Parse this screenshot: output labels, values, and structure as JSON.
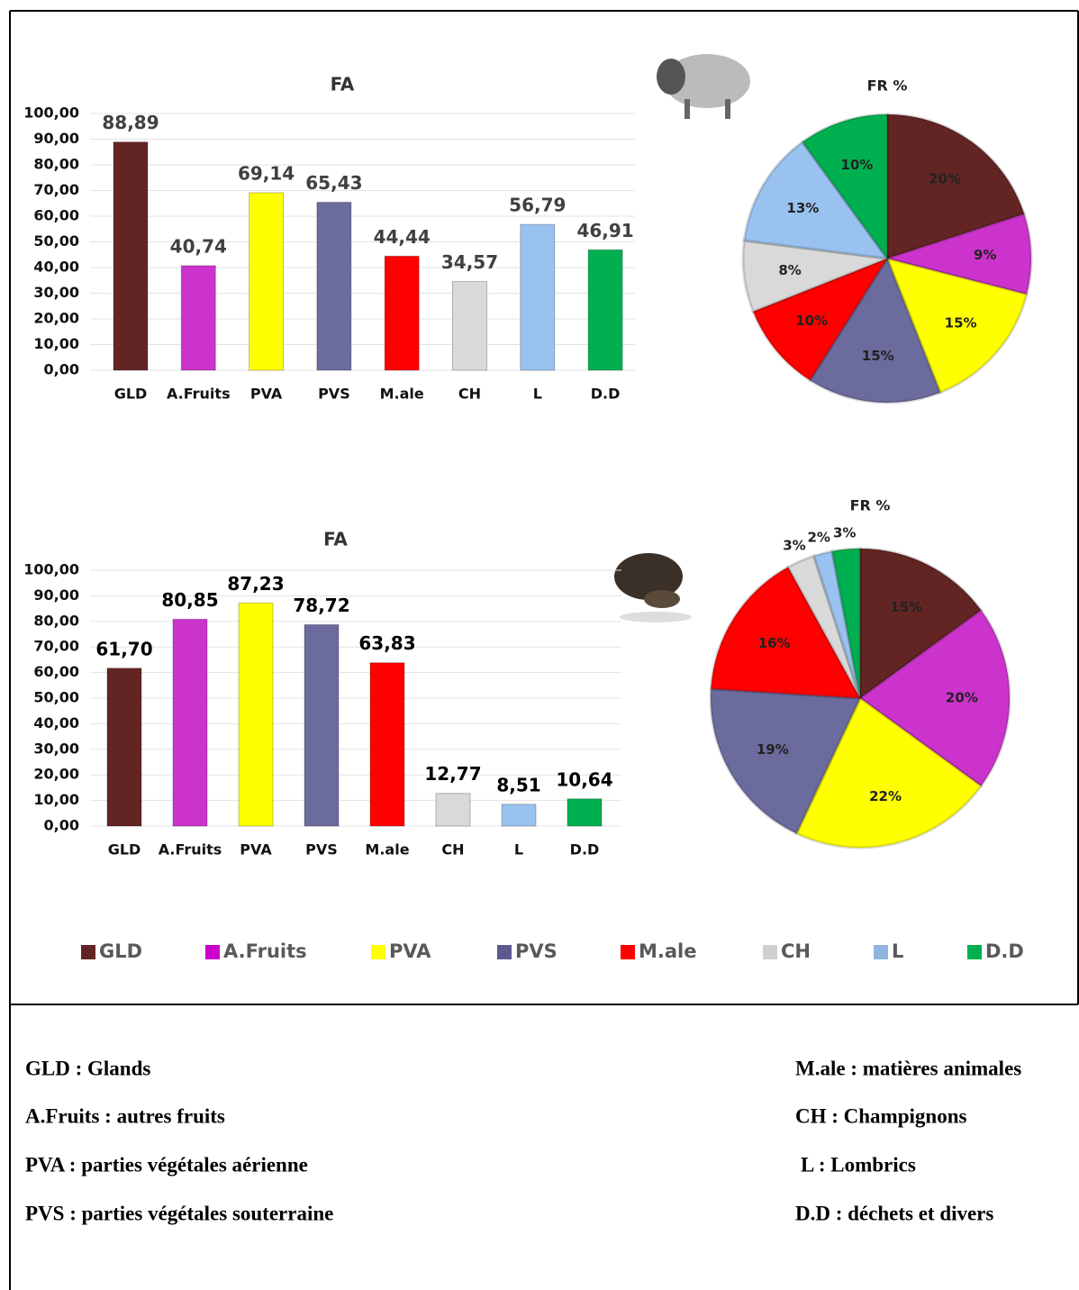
{
  "chart_data": [
    {
      "type": "bar",
      "title": "FA",
      "categories": [
        "GLD",
        "A.Fruits",
        "PVA",
        "PVS",
        "M.ale",
        "CH",
        "L",
        "D.D"
      ],
      "values": [
        88.89,
        40.74,
        69.14,
        65.43,
        44.44,
        34.57,
        56.79,
        46.91
      ],
      "value_labels": [
        "88,89",
        "40,74",
        "69,14",
        "65,43",
        "44,44",
        "34,57",
        "56,79",
        "46,91"
      ],
      "colors": [
        "#632523",
        "#cc33cc",
        "#ffff00",
        "#6b6b9e",
        "#ff0000",
        "#d9d9d9",
        "#99c2f0",
        "#00b050"
      ],
      "ylim": [
        0,
        100
      ],
      "yticks": [
        {
          "value": 0,
          "label": "0,00"
        },
        {
          "value": 10,
          "label": "10,00"
        },
        {
          "value": 20,
          "label": "20,00"
        },
        {
          "value": 30,
          "label": "30,00"
        },
        {
          "value": 40,
          "label": "40,00"
        },
        {
          "value": 50,
          "label": "50,00"
        },
        {
          "value": 60,
          "label": "60,00"
        },
        {
          "value": 70,
          "label": "70,00"
        },
        {
          "value": 80,
          "label": "80,00"
        },
        {
          "value": 90,
          "label": "90,00"
        },
        {
          "value": 100,
          "label": "100,00"
        }
      ],
      "grid": true
    },
    {
      "type": "pie",
      "title": "FR %",
      "values": [
        20,
        9,
        15,
        15,
        10,
        8,
        13,
        10
      ],
      "value_labels": [
        "20%",
        "9%",
        "15%",
        "15%",
        "10%",
        "8%",
        "13%",
        "10%"
      ],
      "colors": [
        "#632523",
        "#cc33cc",
        "#ffff00",
        "#6b6b9e",
        "#ff0000",
        "#d9d9d9",
        "#99c2f0",
        "#00b050"
      ]
    },
    {
      "type": "bar",
      "title": "FA",
      "categories": [
        "GLD",
        "A.Fruits",
        "PVA",
        "PVS",
        "M.ale",
        "CH",
        "L",
        "D.D"
      ],
      "values": [
        61.7,
        80.85,
        87.23,
        78.72,
        63.83,
        12.77,
        8.51,
        10.64
      ],
      "value_labels": [
        "61,70",
        "80,85",
        "87,23",
        "78,72",
        "63,83",
        "12,77",
        "8,51",
        "10,64"
      ],
      "colors": [
        "#632523",
        "#cc33cc",
        "#ffff00",
        "#6b6b9e",
        "#ff0000",
        "#d9d9d9",
        "#99c2f0",
        "#00b050"
      ],
      "ylim": [
        0,
        100
      ],
      "yticks": [
        {
          "value": 0,
          "label": "0,00"
        },
        {
          "value": 10,
          "label": "10,00"
        },
        {
          "value": 20,
          "label": "20,00"
        },
        {
          "value": 30,
          "label": "30,00"
        },
        {
          "value": 40,
          "label": "40,00"
        },
        {
          "value": 50,
          "label": "50,00"
        },
        {
          "value": 60,
          "label": "60,00"
        },
        {
          "value": 70,
          "label": "70,00"
        },
        {
          "value": 80,
          "label": "80,00"
        },
        {
          "value": 90,
          "label": "90,00"
        },
        {
          "value": 100,
          "label": "100,00"
        }
      ],
      "grid": true
    },
    {
      "type": "pie",
      "title": "FR %",
      "values": [
        15,
        20,
        22,
        19,
        16,
        3,
        2,
        3
      ],
      "value_labels": [
        "15%",
        "20%",
        "22%",
        "19%",
        "16%",
        "3%",
        "2%",
        "3%"
      ],
      "colors": [
        "#632523",
        "#cc33cc",
        "#ffff00",
        "#6b6b9e",
        "#ff0000",
        "#d9d9d9",
        "#99c2f0",
        "#00b050"
      ]
    }
  ],
  "legend": {
    "items": [
      {
        "name": "GLD",
        "color": "#632523"
      },
      {
        "name": "A.Fruits",
        "color": "#cc00cc"
      },
      {
        "name": "PVA",
        "color": "#ffff00"
      },
      {
        "name": "PVS",
        "color": "#5b5b8f"
      },
      {
        "name": "M.ale",
        "color": "#ff0000"
      },
      {
        "name": "CH",
        "color": "#d0d0d0"
      },
      {
        "name": "L",
        "color": "#8fb4e0"
      },
      {
        "name": "D.D",
        "color": "#00b050"
      }
    ]
  },
  "key": {
    "left": [
      "GLD : Glands",
      "A.Fruits : autres fruits",
      "PVA : parties végétales aérienne",
      "PVS : parties végétales souterraine"
    ],
    "right": [
      "M.ale : matières animales",
      "CH : Champignons",
      "L : Lombrics",
      "D.D : déchets et divers"
    ]
  }
}
